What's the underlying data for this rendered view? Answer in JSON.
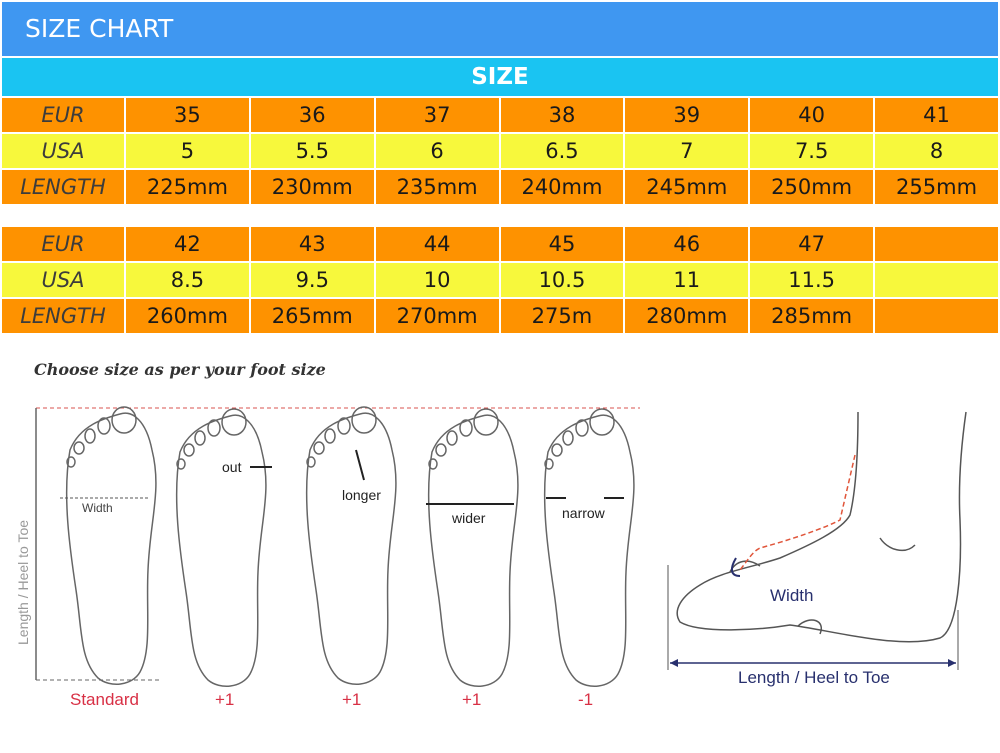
{
  "header": {
    "title": "SIZE CHART"
  },
  "section": {
    "title": "SIZE"
  },
  "table1": {
    "rows": [
      {
        "label": "EUR",
        "cells": [
          "35",
          "36",
          "37",
          "38",
          "39",
          "40",
          "41"
        ]
      },
      {
        "label": "USA",
        "cells": [
          "5",
          "5.5",
          "6",
          "6.5",
          "7",
          "7.5",
          "8"
        ]
      },
      {
        "label": "LENGTH",
        "cells": [
          "225mm",
          "230mm",
          "235mm",
          "240mm",
          "245mm",
          "250mm",
          "255mm"
        ]
      }
    ]
  },
  "table2": {
    "rows": [
      {
        "label": "EUR",
        "cells": [
          "42",
          "43",
          "44",
          "45",
          "46",
          "47",
          ""
        ]
      },
      {
        "label": "USA",
        "cells": [
          "8.5",
          "9.5",
          "10",
          "10.5",
          "11",
          "11.5",
          ""
        ]
      },
      {
        "label": "LENGTH",
        "cells": [
          "260mm",
          "265mm",
          "270mm",
          "275m",
          "280mm",
          "285mm",
          ""
        ]
      }
    ]
  },
  "guide": {
    "heading": "Choose size as per your foot size",
    "axis_label": "Length / Heel to Toe",
    "feet": [
      {
        "annotation": "Width",
        "adjust": "Standard"
      },
      {
        "annotation": "out",
        "adjust": "+1"
      },
      {
        "annotation": "longer",
        "adjust": "+1"
      },
      {
        "annotation": "wider",
        "adjust": "+1"
      },
      {
        "annotation": "narrow",
        "adjust": "-1"
      }
    ],
    "side_view": {
      "width_label": "Width",
      "length_label": "Length / Heel to Toe"
    }
  },
  "colors": {
    "title_bar": "#3f97f1",
    "size_bar": "#1ac4f2",
    "orange": "#fe9200",
    "yellow": "#f7f83c",
    "adjust_red": "#d83045"
  }
}
